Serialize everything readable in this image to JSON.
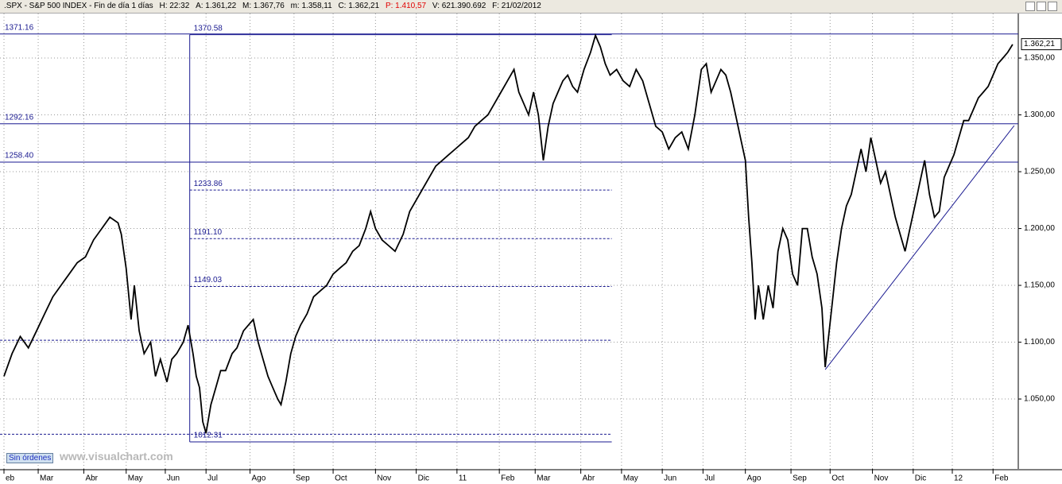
{
  "header": {
    "items": [
      ".SPX - S&P 500 INDEX - Fin de día 1 días",
      "H: 22:32",
      "A: 1.361,22",
      "M: 1.367,76",
      "m: 1.358,11",
      "C: 1.362,21",
      "P: 1.410,57",
      "V: 621.390.692",
      "F: 21/02/2012"
    ]
  },
  "button": "Sin órdenes",
  "watermark": "www.visualchart.com",
  "chart_data": {
    "type": "line",
    "x": [
      0,
      5,
      10,
      15,
      20,
      25,
      30,
      35,
      40,
      45,
      50,
      55,
      60,
      65,
      70,
      72,
      75,
      78,
      80,
      83,
      86,
      90,
      93,
      96,
      100,
      103,
      106,
      110,
      113,
      116,
      118,
      120,
      122,
      124,
      127,
      130,
      133,
      136,
      140,
      143,
      147,
      150,
      153,
      156,
      159,
      162,
      165,
      168,
      170,
      173,
      176,
      179,
      182,
      186,
      190,
      194,
      198,
      202,
      206,
      210,
      214,
      218,
      222,
      225,
      228,
      232,
      236,
      240,
      245,
      249,
      253,
      257,
      261,
      265,
      269,
      273,
      277,
      281,
      285,
      289,
      293,
      297,
      301,
      305,
      309,
      313,
      316,
      319,
      322,
      325,
      328,
      331,
      334,
      337,
      340,
      343,
      346,
      349,
      352,
      356,
      360,
      363,
      366,
      369,
      372,
      376,
      380,
      384,
      388,
      392,
      396,
      400,
      404,
      408,
      412,
      416,
      420,
      424,
      428,
      431,
      434,
      437,
      440,
      443,
      446,
      449,
      452,
      455,
      457,
      459,
      461,
      463,
      466,
      469,
      472,
      475,
      478,
      481,
      484,
      487,
      490,
      493,
      496,
      499,
      502,
      504,
      508,
      511,
      514,
      517,
      520,
      523,
      526,
      529,
      532,
      535,
      538,
      541,
      544,
      547,
      550,
      553,
      556,
      559,
      562,
      565,
      568,
      571,
      574,
      577,
      580,
      583,
      586,
      589,
      592,
      595,
      598,
      601,
      604,
      607,
      610,
      613,
      616,
      619
    ],
    "series": [
      {
        "color": "#000000",
        "values": [
          1070,
          1090,
          1105,
          1095,
          1110,
          1125,
          1140,
          1150,
          1160,
          1170,
          1175,
          1190,
          1200,
          1210,
          1205,
          1195,
          1165,
          1120,
          1150,
          1110,
          1090,
          1100,
          1070,
          1085,
          1065,
          1085,
          1090,
          1100,
          1115,
          1090,
          1070,
          1060,
          1030,
          1020,
          1045,
          1060,
          1075,
          1075,
          1090,
          1095,
          1110,
          1115,
          1120,
          1100,
          1085,
          1070,
          1060,
          1050,
          1045,
          1065,
          1090,
          1105,
          1115,
          1125,
          1140,
          1145,
          1150,
          1160,
          1165,
          1170,
          1180,
          1185,
          1200,
          1215,
          1200,
          1190,
          1185,
          1180,
          1195,
          1215,
          1225,
          1235,
          1245,
          1255,
          1260,
          1265,
          1270,
          1275,
          1280,
          1290,
          1295,
          1300,
          1310,
          1320,
          1330,
          1340,
          1320,
          1310,
          1300,
          1320,
          1300,
          1260,
          1290,
          1310,
          1320,
          1330,
          1335,
          1325,
          1320,
          1340,
          1355,
          1370,
          1360,
          1345,
          1335,
          1340,
          1330,
          1325,
          1340,
          1330,
          1310,
          1290,
          1285,
          1270,
          1280,
          1285,
          1270,
          1300,
          1340,
          1345,
          1320,
          1330,
          1340,
          1335,
          1320,
          1300,
          1280,
          1260,
          1210,
          1170,
          1120,
          1150,
          1120,
          1150,
          1130,
          1180,
          1200,
          1190,
          1160,
          1150,
          1200,
          1200,
          1175,
          1160,
          1130,
          1078,
          1130,
          1170,
          1200,
          1220,
          1230,
          1250,
          1270,
          1250,
          1280,
          1260,
          1240,
          1250,
          1230,
          1210,
          1195,
          1180,
          1200,
          1220,
          1240,
          1260,
          1230,
          1210,
          1215,
          1245,
          1255,
          1265,
          1280,
          1295,
          1295,
          1305,
          1315,
          1320,
          1325,
          1335,
          1345,
          1350,
          1355,
          1362
        ]
      }
    ],
    "xlim": [
      0,
      622
    ],
    "xticks": [
      {
        "value": 0,
        "label": "eb"
      },
      {
        "value": 21,
        "label": "Mar"
      },
      {
        "value": 49,
        "label": "Abr"
      },
      {
        "value": 75,
        "label": "May"
      },
      {
        "value": 99,
        "label": "Jun"
      },
      {
        "value": 124,
        "label": "Jul"
      },
      {
        "value": 151,
        "label": "Ago"
      },
      {
        "value": 178,
        "label": "Sep"
      },
      {
        "value": 202,
        "label": "Oct"
      },
      {
        "value": 228,
        "label": "Nov"
      },
      {
        "value": 253,
        "label": "Dic"
      },
      {
        "value": 278,
        "label": "11"
      },
      {
        "value": 304,
        "label": "Feb"
      },
      {
        "value": 326,
        "label": "Mar"
      },
      {
        "value": 354,
        "label": "Abr"
      },
      {
        "value": 379,
        "label": "May"
      },
      {
        "value": 404,
        "label": "Jun"
      },
      {
        "value": 429,
        "label": "Jul"
      },
      {
        "value": 455,
        "label": "Ago"
      },
      {
        "value": 483,
        "label": "Sep"
      },
      {
        "value": 507,
        "label": "Oct"
      },
      {
        "value": 533,
        "label": "Nov"
      },
      {
        "value": 558,
        "label": "Dic"
      },
      {
        "value": 582,
        "label": "12"
      },
      {
        "value": 607,
        "label": "Feb"
      }
    ],
    "ylim": [
      988.5,
      1389.2
    ],
    "yticks": [
      {
        "value": 1050,
        "label": "1.050,00"
      },
      {
        "value": 1100,
        "label": "1.100,00"
      },
      {
        "value": 1150,
        "label": "1.150,00"
      },
      {
        "value": 1200,
        "label": "1.200,00"
      },
      {
        "value": 1250,
        "label": "1.250,00"
      },
      {
        "value": 1300,
        "label": "1.300,00"
      },
      {
        "value": 1350,
        "label": "1.350,00"
      }
    ],
    "grid": true,
    "support_levels": [
      1371.16,
      1292.16,
      {
        "value": 1258.4,
        "label": "1258.40"
      }
    ],
    "fibonacci": {
      "x": 114,
      "x_end": 373,
      "levels": [
        1370.58,
        1233.86,
        {
          "value": 1191.1,
          "label": "1191.10"
        },
        1149.03,
        1012.31
      ]
    },
    "guide_lines": [
      1101.7,
      1019
    ],
    "trendline": {
      "x": [
        504,
        620
      ],
      "values": [
        1075.9,
        1290.6
      ]
    },
    "last_price": {
      "value": 1362.21,
      "label": "1.362,21"
    }
  }
}
